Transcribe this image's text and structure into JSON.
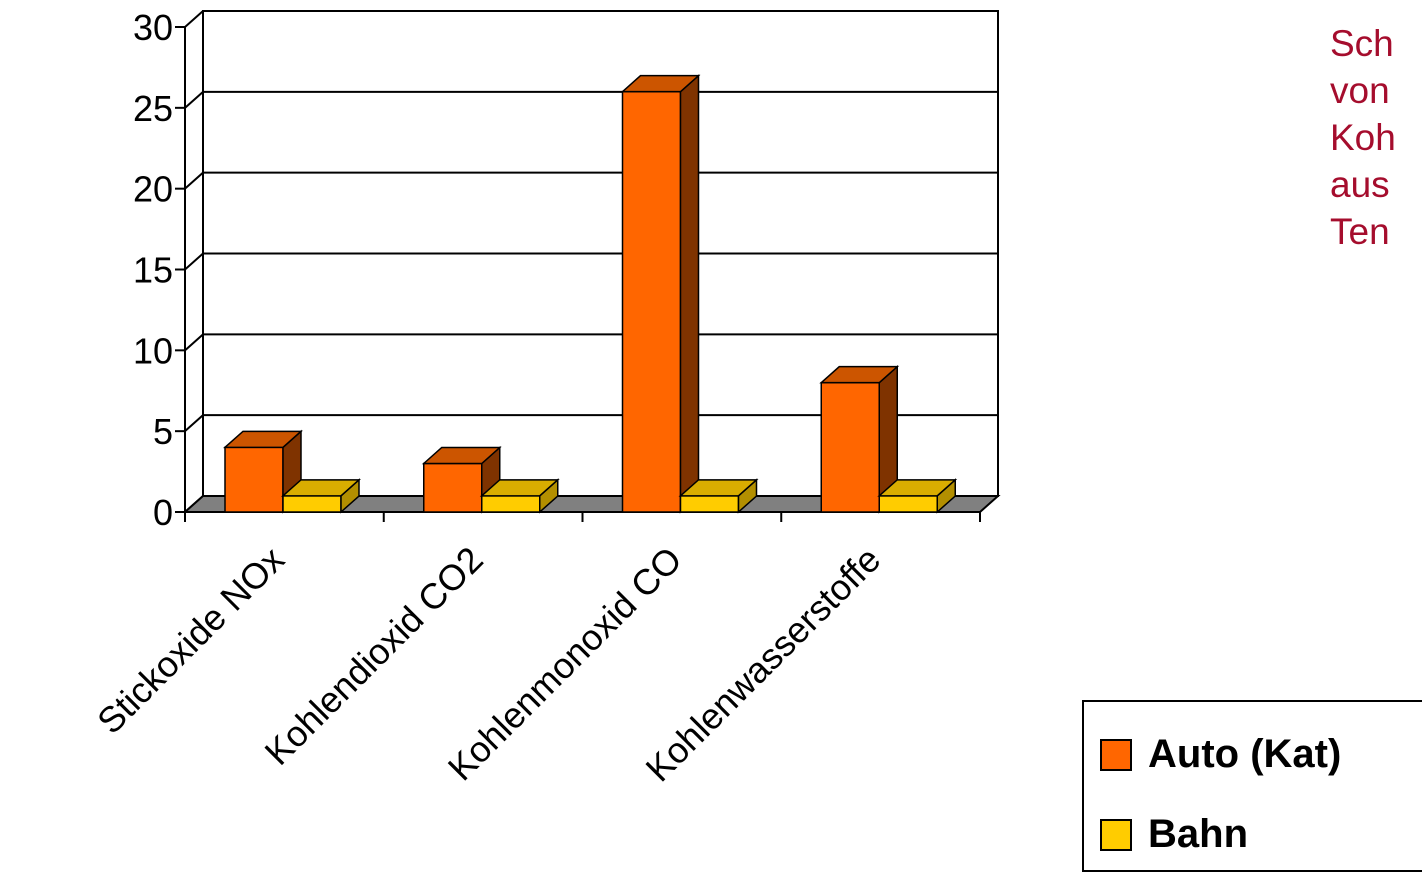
{
  "chart_data": {
    "type": "bar",
    "categories": [
      "Stickoxide NOx",
      "Kohlendioxid CO2",
      "Kohlenmonoxid CO",
      "Kohlenwasserstoffe"
    ],
    "series": [
      {
        "name": "Auto (Kat)",
        "values": [
          4,
          3,
          26,
          8
        ],
        "color": "#ff6600"
      },
      {
        "name": "Bahn",
        "values": [
          1,
          1,
          1,
          1
        ],
        "color": "#ffcc00"
      }
    ],
    "yticks": [
      "0",
      "5",
      "10",
      "15",
      "20",
      "25",
      "30"
    ],
    "ylim": [
      0,
      30
    ],
    "grid": true,
    "legend_position": "bottom-right"
  },
  "side_text": [
    "Sch",
    "von",
    "Koh",
    "aus",
    "Ten"
  ],
  "colors": {
    "side_text": "#a50d2d",
    "floor": "#808080",
    "auto_side": "#7f3300",
    "auto_top": "#cc5500",
    "bahn_side": "#b38f00",
    "bahn_top": "#d9ad00"
  }
}
